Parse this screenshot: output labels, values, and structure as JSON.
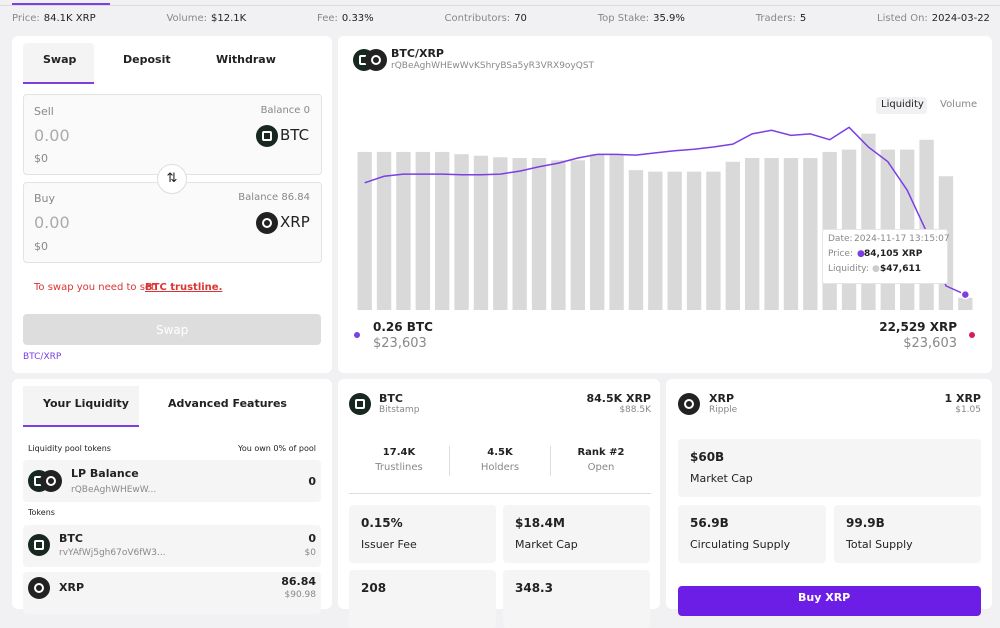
{
  "top_stats": [
    {
      "label": "Price:",
      "value": "84.1K XRP"
    },
    {
      "label": "Volume:",
      "value": "$12.1K"
    },
    {
      "label": "Fee:",
      "value": "0.33%"
    },
    {
      "label": "Contributors:",
      "value": "70"
    },
    {
      "label": "Top Stake:",
      "value": "35.9%"
    },
    {
      "label": "Traders:",
      "value": "5"
    },
    {
      "label": "Listed On:",
      "value": "2024-03-22"
    }
  ],
  "swap": {
    "tabs": [
      "Swap",
      "Deposit",
      "Withdraw"
    ],
    "sell": {
      "label": "Sell",
      "balance": "Balance 0",
      "amount": "0.00",
      "token": "BTC",
      "usd": "$0"
    },
    "buy": {
      "label": "Buy",
      "balance": "Balance 86.84",
      "amount": "0.00",
      "token": "XRP",
      "usd": "$0"
    },
    "notice": "To swap you need to set",
    "notice_link": "BTC trustline.",
    "button": "Swap",
    "pair_link": "BTC/XRP"
  },
  "liquidity": {
    "tabs": [
      "Your Liquidity",
      "Advanced Features"
    ],
    "pool_tokens": "Liquidity pool tokens",
    "own": "You own 0% of pool",
    "lp": {
      "name": "LP Balance",
      "address": "rQBeAghWHEwW...",
      "amount": "0"
    },
    "tokens_label": "Tokens",
    "btc": {
      "name": "BTC",
      "address": "rvYAfWj5gh67oV6fW3...",
      "amount": "0",
      "usd": "$0"
    },
    "xrp": {
      "name": "XRP",
      "amount": "86.84",
      "usd": "$90.98"
    }
  },
  "chart_header": {
    "pair": "BTC/XRP",
    "address": "rQBeAghWHEwWvKShryBSa5yR3VRX9oyQST",
    "toggles": [
      "Liquidity",
      "Volume"
    ]
  },
  "chart_data": {
    "type": "bar",
    "series": [
      {
        "name": "Liquidity:",
        "color": "#d9d9d9",
        "values": [
          66800,
          66800,
          66800,
          66800,
          66800,
          66500,
          66300,
          66100,
          66000,
          66000,
          65700,
          65700,
          66500,
          66500,
          64400,
          64200,
          64200,
          64200,
          64200,
          65500,
          66000,
          66000,
          66000,
          66000,
          66800,
          67100,
          69200,
          67100,
          67100,
          68400,
          63600,
          47611
        ]
      },
      {
        "name": "Price:",
        "type": "line",
        "axis": "y2",
        "color": "#7b3fe4",
        "values": [
          99400,
          100300,
          100600,
          100600,
          100600,
          100500,
          100500,
          100600,
          101000,
          101600,
          102100,
          102800,
          103300,
          103300,
          103200,
          103500,
          103800,
          104000,
          104300,
          104700,
          106100,
          106600,
          105900,
          106100,
          105300,
          107000,
          104300,
          102300,
          98400,
          92700,
          85300,
          84105
        ]
      }
    ],
    "ylim": [
      46000,
      71000
    ],
    "y2lim": [
      82000,
      108000
    ],
    "tooltip": {
      "date_label": "Date:",
      "date": "2024-11-17 13:15:07",
      "price_label": "Price:",
      "price": "84,105 XRP",
      "liquidity_label": "Liquidity:",
      "liquidity": "$47,611"
    }
  },
  "chart_footer": {
    "base": {
      "amount": "0.26 BTC",
      "usd": "$23,603"
    },
    "quote": {
      "amount": "22,529 XRP",
      "usd": "$23,603"
    }
  },
  "btc_card": {
    "name": "BTC",
    "issuer": "Bitstamp",
    "price": "84.5K XRP",
    "usd": "$88.5K",
    "stats": [
      {
        "value": "17.4K",
        "label": "Trustlines"
      },
      {
        "value": "4.5K",
        "label": "Holders"
      },
      {
        "value": "Rank #2",
        "label": "Open"
      }
    ],
    "boxes": [
      {
        "value": "0.15%",
        "label": "Issuer Fee"
      },
      {
        "value": "$18.4M",
        "label": "Market Cap"
      },
      {
        "value": "208"
      },
      {
        "value": "348.3"
      }
    ]
  },
  "xrp_card": {
    "name": "XRP",
    "issuer": "Ripple",
    "price": "1 XRP",
    "usd": "$1.05",
    "boxes": [
      {
        "value": "$60B",
        "label": "Market Cap"
      },
      {
        "value": "56.9B",
        "label": "Circulating Supply"
      },
      {
        "value": "99.9B",
        "label": "Total Supply"
      }
    ],
    "button": "Buy XRP"
  }
}
